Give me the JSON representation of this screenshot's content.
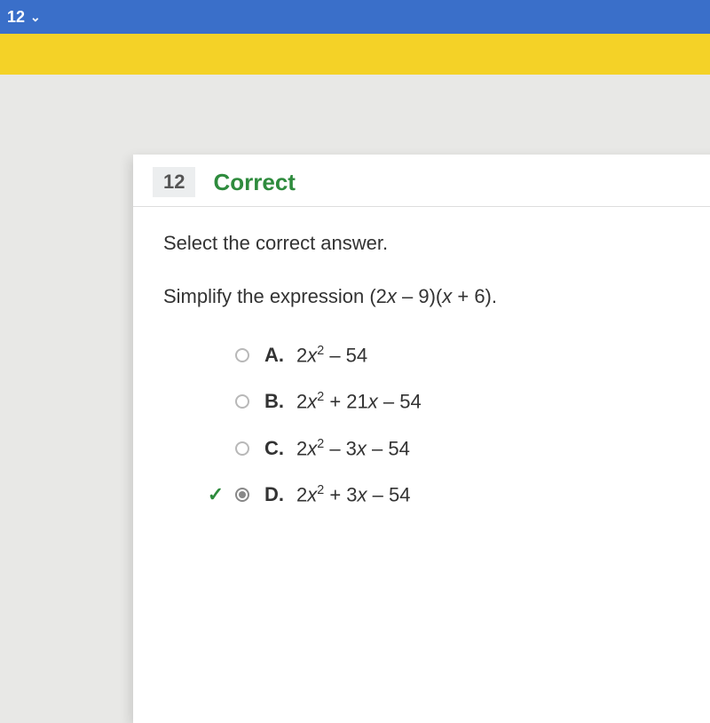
{
  "topbar": {
    "nav_number": "12",
    "chevron_glyph": "✔"
  },
  "question": {
    "number": "12",
    "status": "Correct",
    "status_color": "#2e8b3d",
    "instruction": "Select the correct answer.",
    "prompt_prefix": "Simplify the expression (2",
    "prompt_var1": "x",
    "prompt_mid1": " – 9)(",
    "prompt_var2": "x",
    "prompt_suffix": " + 6).",
    "choices": [
      {
        "letter": "A.",
        "prefix": "2",
        "var": "x",
        "sup": "2",
        "rest": " – 54",
        "selected": false,
        "correct_mark": false
      },
      {
        "letter": "B.",
        "prefix": "2",
        "var": "x",
        "sup": "2",
        "mid": " + 21",
        "var2": "x",
        "rest": " – 54",
        "selected": false,
        "correct_mark": false
      },
      {
        "letter": "C.",
        "prefix": "2",
        "var": "x",
        "sup": "2",
        "mid": " – 3",
        "var2": "x",
        "rest": " – 54",
        "selected": false,
        "correct_mark": false
      },
      {
        "letter": "D.",
        "prefix": "2",
        "var": "x",
        "sup": "2",
        "mid": " + 3",
        "var2": "x",
        "rest": " – 54",
        "selected": true,
        "correct_mark": true
      }
    ]
  },
  "colors": {
    "blue_bar": "#3a6fc9",
    "yellow_bar": "#f4d227",
    "page_bg": "#e8e8e6",
    "card_bg": "#ffffff",
    "badge_bg": "#eceeef",
    "correct_green": "#2e8b3d",
    "text": "#333333",
    "radio_border": "#b8b8b8"
  }
}
